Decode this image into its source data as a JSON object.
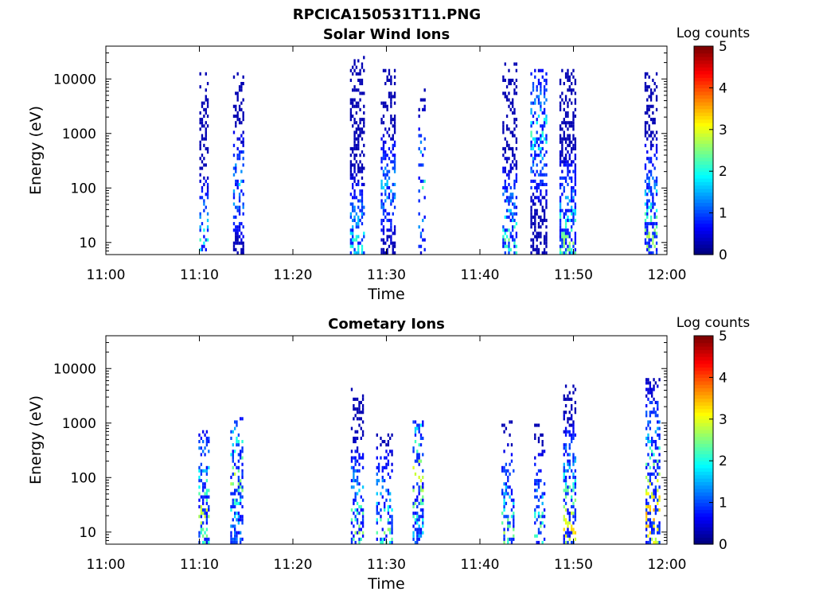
{
  "figure": {
    "title": "RPCICA150531T11.PNG"
  },
  "chart_data": [
    {
      "type": "heatmap",
      "title": "Solar Wind Ions",
      "xlabel": "Time",
      "ylabel": "Energy (eV)",
      "yscale": "log",
      "xlim": [
        "11:00",
        "12:00"
      ],
      "ylim": [
        6,
        40000
      ],
      "x_ticks": [
        "11:00",
        "11:10",
        "11:20",
        "11:30",
        "11:40",
        "11:50",
        "12:00"
      ],
      "y_ticks": [
        "10",
        "100",
        "1000",
        "10000"
      ],
      "colorbar": {
        "label": "Log counts",
        "range": [
          0,
          5
        ],
        "ticks": [
          "0",
          "1",
          "2",
          "3",
          "4",
          "5"
        ]
      },
      "bursts": [
        {
          "time_min": 10.5,
          "width_min": 1.0,
          "emin": 6,
          "emax": 14000,
          "peak_log": 2.0,
          "peak_energy": 10,
          "density": 0.45
        },
        {
          "time_min": 14.2,
          "width_min": 1.2,
          "emin": 6,
          "emax": 13000,
          "peak_log": 1.7,
          "peak_energy": 100,
          "density": 0.45
        },
        {
          "time_min": 26.9,
          "width_min": 1.6,
          "emin": 6,
          "emax": 25000,
          "peak_log": 2.0,
          "peak_energy": 10,
          "density": 0.5
        },
        {
          "time_min": 30.2,
          "width_min": 1.6,
          "emin": 6,
          "emax": 14000,
          "peak_log": 1.6,
          "peak_energy": 100,
          "density": 0.5
        },
        {
          "time_min": 33.8,
          "width_min": 0.8,
          "emin": 6,
          "emax": 6000,
          "peak_log": 2.2,
          "peak_energy": 100,
          "density": 0.25
        },
        {
          "time_min": 43.2,
          "width_min": 1.6,
          "emin": 6,
          "emax": 20000,
          "peak_log": 2.3,
          "peak_energy": 10,
          "density": 0.45
        },
        {
          "time_min": 46.3,
          "width_min": 1.8,
          "emin": 6,
          "emax": 14000,
          "peak_log": 2.1,
          "peak_energy": 1000,
          "density": 0.55
        },
        {
          "time_min": 49.4,
          "width_min": 1.8,
          "emin": 6,
          "emax": 15000,
          "peak_log": 2.5,
          "peak_energy": 10,
          "density": 0.6
        },
        {
          "time_min": 58.3,
          "width_min": 1.4,
          "emin": 6,
          "emax": 13000,
          "peak_log": 2.8,
          "peak_energy": 10,
          "density": 0.55
        }
      ]
    },
    {
      "type": "heatmap",
      "title": "Cometary Ions",
      "xlabel": "Time",
      "ylabel": "Energy (eV)",
      "yscale": "log",
      "xlim": [
        "11:00",
        "12:00"
      ],
      "ylim": [
        6,
        40000
      ],
      "x_ticks": [
        "11:00",
        "11:10",
        "11:20",
        "11:30",
        "11:40",
        "11:50",
        "12:00"
      ],
      "y_ticks": [
        "10",
        "100",
        "1000",
        "10000"
      ],
      "colorbar": {
        "label": "Log counts",
        "range": [
          0,
          5
        ],
        "ticks": [
          "0",
          "1",
          "2",
          "3",
          "4",
          "5"
        ]
      },
      "bursts": [
        {
          "time_min": 10.5,
          "width_min": 1.2,
          "emin": 6,
          "emax": 900,
          "peak_log": 2.8,
          "peak_energy": 20,
          "density": 0.55
        },
        {
          "time_min": 14.0,
          "width_min": 1.4,
          "emin": 6,
          "emax": 1200,
          "peak_log": 2.7,
          "peak_energy": 100,
          "density": 0.55
        },
        {
          "time_min": 26.9,
          "width_min": 1.4,
          "emin": 6,
          "emax": 4000,
          "peak_log": 2.6,
          "peak_energy": 10,
          "density": 0.45
        },
        {
          "time_min": 29.8,
          "width_min": 1.8,
          "emin": 6,
          "emax": 600,
          "peak_log": 2.4,
          "peak_energy": 10,
          "density": 0.45
        },
        {
          "time_min": 33.4,
          "width_min": 1.2,
          "emin": 6,
          "emax": 1000,
          "peak_log": 3.0,
          "peak_energy": 100,
          "density": 0.5
        },
        {
          "time_min": 43.0,
          "width_min": 1.4,
          "emin": 6,
          "emax": 1000,
          "peak_log": 2.6,
          "peak_energy": 10,
          "density": 0.4
        },
        {
          "time_min": 46.4,
          "width_min": 1.2,
          "emin": 6,
          "emax": 900,
          "peak_log": 2.4,
          "peak_energy": 10,
          "density": 0.35
        },
        {
          "time_min": 49.6,
          "width_min": 1.4,
          "emin": 6,
          "emax": 5000,
          "peak_log": 3.2,
          "peak_energy": 10,
          "density": 0.55
        },
        {
          "time_min": 58.5,
          "width_min": 1.6,
          "emin": 6,
          "emax": 6000,
          "peak_log": 3.6,
          "peak_energy": 20,
          "density": 0.6
        }
      ]
    }
  ]
}
